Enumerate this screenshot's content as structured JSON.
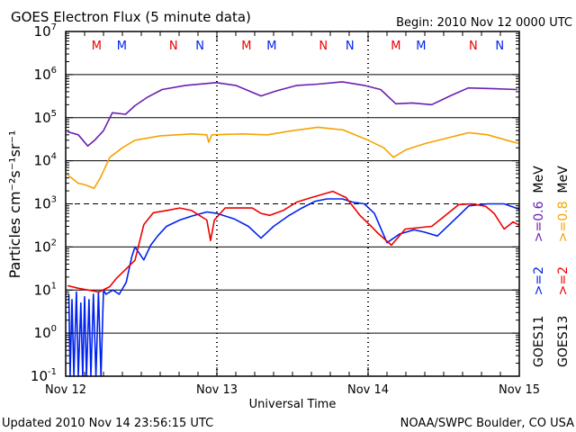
{
  "chart_data": {
    "type": "line",
    "title": "GOES Electron Flux (5 minute data)",
    "begin_label": "Begin: 2010 Nov 12 0000 UTC",
    "xlabel": "Universal Time",
    "ylabel": "Particles cm⁻²s⁻¹sr⁻¹",
    "x_unit": "hours since 2010 Nov 12 0000 UTC",
    "xlim": [
      0,
      72
    ],
    "x_ticks": [
      {
        "hour": 0,
        "label": "Nov 12"
      },
      {
        "hour": 24,
        "label": "Nov 13"
      },
      {
        "hour": 48,
        "label": "Nov 14"
      },
      {
        "hour": 72,
        "label": "Nov 15"
      }
    ],
    "y_scale": "log",
    "ylim": [
      0.1,
      10000000
    ],
    "y_ticks": [
      {
        "base": "10",
        "exp": "7"
      },
      {
        "base": "10",
        "exp": "6"
      },
      {
        "base": "10",
        "exp": "5"
      },
      {
        "base": "10",
        "exp": "4"
      },
      {
        "base": "10",
        "exp": "3"
      },
      {
        "base": "10",
        "exp": "2"
      },
      {
        "base": "10",
        "exp": "1"
      },
      {
        "base": "10",
        "exp": "0"
      },
      {
        "base": "10",
        "exp": "-1"
      }
    ],
    "threshold_line": 1000,
    "grid": true,
    "legend_position": "right",
    "legend": {
      "goes11": {
        "label": "GOES11",
        "items": [
          {
            "text": ">=2",
            "color": "#0022ee"
          },
          {
            "text": ">=0.6",
            "color": "#6a1fb0"
          },
          {
            "text": "MeV",
            "color": "#000000"
          }
        ]
      },
      "goes13": {
        "label": "GOES13",
        "items": [
          {
            "text": ">=2",
            "color": "#ee0000"
          },
          {
            "text": ">=0.8",
            "color": "#f5a300"
          },
          {
            "text": "MeV",
            "color": "#000000"
          }
        ]
      }
    },
    "markers": [
      {
        "hour": 4.9,
        "text": "M",
        "color": "#ee0000"
      },
      {
        "hour": 8.9,
        "text": "M",
        "color": "#0022ee"
      },
      {
        "hour": 17.1,
        "text": "N",
        "color": "#ee0000"
      },
      {
        "hour": 21.3,
        "text": "N",
        "color": "#0022ee"
      },
      {
        "hour": 28.7,
        "text": "M",
        "color": "#ee0000"
      },
      {
        "hour": 32.7,
        "text": "M",
        "color": "#0022ee"
      },
      {
        "hour": 40.9,
        "text": "N",
        "color": "#ee0000"
      },
      {
        "hour": 45.1,
        "text": "N",
        "color": "#0022ee"
      },
      {
        "hour": 52.4,
        "text": "M",
        "color": "#ee0000"
      },
      {
        "hour": 56.4,
        "text": "M",
        "color": "#0022ee"
      },
      {
        "hour": 64.7,
        "text": "N",
        "color": "#ee0000"
      },
      {
        "hour": 68.9,
        "text": "N",
        "color": "#0022ee"
      }
    ],
    "series": [
      {
        "name": "GOES11 >=0.6 MeV",
        "color": "#6a1fb0",
        "points": [
          [
            0.3,
            47000
          ],
          [
            2,
            40000
          ],
          [
            3.5,
            22000
          ],
          [
            4.6,
            30000
          ],
          [
            6,
            50000
          ],
          [
            7.4,
            130000
          ],
          [
            9.5,
            120000
          ],
          [
            11,
            190000
          ],
          [
            13,
            300000
          ],
          [
            15.3,
            450000
          ],
          [
            19,
            560000
          ],
          [
            23.9,
            650000
          ],
          [
            27,
            560000
          ],
          [
            31,
            320000
          ],
          [
            33.5,
            420000
          ],
          [
            36.7,
            560000
          ],
          [
            40,
            600000
          ],
          [
            43.9,
            680000
          ],
          [
            47.4,
            560000
          ],
          [
            50,
            450000
          ],
          [
            52.4,
            210000
          ],
          [
            55,
            220000
          ],
          [
            58.1,
            200000
          ],
          [
            61,
            320000
          ],
          [
            63.9,
            490000
          ],
          [
            68,
            470000
          ],
          [
            71.7,
            450000
          ]
        ]
      },
      {
        "name": "GOES13 >=0.8 MeV",
        "color": "#f5a300",
        "points": [
          [
            0.3,
            4700
          ],
          [
            2,
            3000
          ],
          [
            3,
            2800
          ],
          [
            4.5,
            2300
          ],
          [
            5.5,
            4000
          ],
          [
            7,
            12000
          ],
          [
            9,
            20000
          ],
          [
            11,
            30000
          ],
          [
            15,
            38000
          ],
          [
            20,
            42000
          ],
          [
            22.4,
            40000
          ],
          [
            22.7,
            27000
          ],
          [
            23.2,
            40000
          ],
          [
            28,
            42000
          ],
          [
            32,
            40000
          ],
          [
            36,
            50000
          ],
          [
            40,
            60000
          ],
          [
            44,
            52000
          ],
          [
            48,
            30000
          ],
          [
            50.5,
            20000
          ],
          [
            52,
            12000
          ],
          [
            54,
            18000
          ],
          [
            57,
            25000
          ],
          [
            61,
            35000
          ],
          [
            64,
            45000
          ],
          [
            67,
            40000
          ],
          [
            70,
            30000
          ],
          [
            72,
            25000
          ]
        ]
      },
      {
        "name": "GOES11 >=2 MeV",
        "color": "#0022ee",
        "points": [
          [
            0.5,
            8
          ],
          [
            0.7,
            0.1
          ],
          [
            1,
            6
          ],
          [
            1.3,
            0.1
          ],
          [
            1.7,
            9
          ],
          [
            2,
            0.1
          ],
          [
            2.4,
            5
          ],
          [
            2.7,
            0.1
          ],
          [
            3,
            7
          ],
          [
            3.3,
            0.1
          ],
          [
            3.7,
            6
          ],
          [
            4,
            0.1
          ],
          [
            4.4,
            8
          ],
          [
            4.8,
            0.1
          ],
          [
            5.2,
            9
          ],
          [
            5.6,
            0.1
          ],
          [
            6,
            10
          ],
          [
            6.4,
            8
          ],
          [
            7.5,
            10
          ],
          [
            8.5,
            8
          ],
          [
            9.6,
            15
          ],
          [
            10.5,
            60
          ],
          [
            11,
            100
          ],
          [
            12.4,
            50
          ],
          [
            13.5,
            110
          ],
          [
            14.6,
            180
          ],
          [
            16,
            300
          ],
          [
            18.1,
            420
          ],
          [
            20,
            520
          ],
          [
            22.4,
            650
          ],
          [
            24,
            600
          ],
          [
            26.7,
            450
          ],
          [
            29,
            300
          ],
          [
            31,
            160
          ],
          [
            33,
            300
          ],
          [
            35.3,
            520
          ],
          [
            37.5,
            800
          ],
          [
            39.6,
            1150
          ],
          [
            41.5,
            1300
          ],
          [
            43.9,
            1300
          ],
          [
            45.5,
            1100
          ],
          [
            47.4,
            1000
          ],
          [
            49,
            600
          ],
          [
            51,
            125
          ],
          [
            53,
            200
          ],
          [
            55.3,
            250
          ],
          [
            57,
            220
          ],
          [
            59,
            180
          ],
          [
            61.5,
            400
          ],
          [
            64,
            900
          ],
          [
            67,
            1000
          ],
          [
            69.6,
            1000
          ],
          [
            72,
            750
          ]
        ]
      },
      {
        "name": "GOES13 >=2 MeV",
        "color": "#ee0000",
        "points": [
          [
            0.3,
            12.6
          ],
          [
            2,
            11
          ],
          [
            5.3,
            9
          ],
          [
            7,
            12
          ],
          [
            8.1,
            19
          ],
          [
            9.5,
            30
          ],
          [
            11,
            49
          ],
          [
            12.4,
            330
          ],
          [
            13.9,
            620
          ],
          [
            16,
            700
          ],
          [
            18.1,
            800
          ],
          [
            20,
            700
          ],
          [
            22.4,
            420
          ],
          [
            23,
            140
          ],
          [
            23.6,
            420
          ],
          [
            25.3,
            800
          ],
          [
            27.5,
            800
          ],
          [
            29.6,
            800
          ],
          [
            31,
            600
          ],
          [
            32.4,
            540
          ],
          [
            34.5,
            700
          ],
          [
            36.7,
            1100
          ],
          [
            39,
            1400
          ],
          [
            42.4,
            1950
          ],
          [
            44.5,
            1400
          ],
          [
            46.7,
            540
          ],
          [
            48.5,
            300
          ],
          [
            49.6,
            205
          ],
          [
            51.7,
            110
          ],
          [
            53.9,
            260
          ],
          [
            56,
            280
          ],
          [
            58.1,
            300
          ],
          [
            60,
            500
          ],
          [
            62.4,
            960
          ],
          [
            64.5,
            1000
          ],
          [
            66.7,
            870
          ],
          [
            68,
            600
          ],
          [
            69.6,
            260
          ],
          [
            71,
            380
          ],
          [
            72,
            320
          ]
        ]
      }
    ]
  },
  "footer": {
    "updated": "Updated 2010 Nov 14 23:56:15 UTC",
    "source": "NOAA/SWPC Boulder, CO USA"
  }
}
